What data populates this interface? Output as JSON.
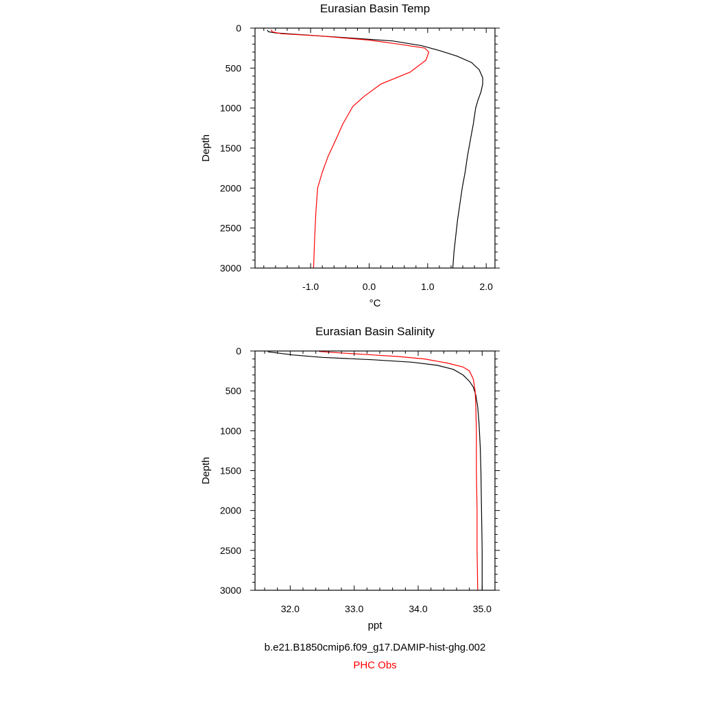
{
  "chart_data": [
    {
      "type": "line",
      "title": "Eurasian Basin Temp",
      "xlabel": "°C",
      "ylabel": "Depth",
      "xlim": [
        -1.95,
        2.15
      ],
      "ylim": [
        3000,
        0
      ],
      "y_reversed": true,
      "xticks": [
        -1.0,
        0.0,
        1.0,
        2.0
      ],
      "xtick_labels": [
        "-1.0",
        "0.0",
        "1.0",
        "2.0"
      ],
      "yticks": [
        0,
        500,
        1000,
        1500,
        2000,
        2500,
        3000
      ],
      "ytick_labels": [
        "0",
        "500",
        "1000",
        "1500",
        "2000",
        "2500",
        "3000"
      ],
      "series": [
        {
          "name": "b.e21.B1850cmip6.f09_g17.DAMIP-hist-ghg.002",
          "color": "#000000",
          "points": [
            [
              -1.74,
              25
            ],
            [
              -1.72,
              45
            ],
            [
              -1.6,
              60
            ],
            [
              -1.2,
              80
            ],
            [
              -0.4,
              120
            ],
            [
              0.4,
              160
            ],
            [
              0.9,
              220
            ],
            [
              1.2,
              280
            ],
            [
              1.5,
              350
            ],
            [
              1.75,
              430
            ],
            [
              1.88,
              520
            ],
            [
              1.94,
              620
            ],
            [
              1.94,
              700
            ],
            [
              1.91,
              800
            ],
            [
              1.86,
              900
            ],
            [
              1.82,
              1000
            ],
            [
              1.78,
              1200
            ],
            [
              1.73,
              1400
            ],
            [
              1.68,
              1600
            ],
            [
              1.64,
              1800
            ],
            [
              1.59,
              2000
            ],
            [
              1.55,
              2200
            ],
            [
              1.51,
              2400
            ],
            [
              1.48,
              2600
            ],
            [
              1.45,
              2800
            ],
            [
              1.43,
              3000
            ]
          ]
        },
        {
          "name": "PHC Obs",
          "color": "#ff0000",
          "points": [
            [
              -1.67,
              20
            ],
            [
              -1.66,
              45
            ],
            [
              -1.5,
              70
            ],
            [
              -0.8,
              100
            ],
            [
              0,
              150
            ],
            [
              0.5,
              200
            ],
            [
              0.95,
              250
            ],
            [
              1.02,
              300
            ],
            [
              0.97,
              400
            ],
            [
              0.7,
              550
            ],
            [
              0.2,
              700
            ],
            [
              -0.08,
              850
            ],
            [
              -0.28,
              980
            ],
            [
              -0.45,
              1200
            ],
            [
              -0.56,
              1380
            ],
            [
              -0.7,
              1600
            ],
            [
              -0.8,
              1800
            ],
            [
              -0.88,
              2000
            ],
            [
              -0.91,
              2300
            ],
            [
              -0.93,
              2600
            ],
            [
              -0.95,
              3000
            ]
          ]
        }
      ]
    },
    {
      "type": "line",
      "title": "Eurasian Basin Salinity",
      "xlabel": "ppt",
      "ylabel": "Depth",
      "xlim": [
        31.45,
        35.2
      ],
      "ylim": [
        3000,
        0
      ],
      "y_reversed": true,
      "xticks": [
        32.0,
        33.0,
        34.0,
        35.0
      ],
      "xtick_labels": [
        "32.0",
        "33.0",
        "34.0",
        "35.0"
      ],
      "yticks": [
        0,
        500,
        1000,
        1500,
        2000,
        2500,
        3000
      ],
      "ytick_labels": [
        "0",
        "500",
        "1000",
        "1500",
        "2000",
        "2500",
        "3000"
      ],
      "series": [
        {
          "name": "b.e21.B1850cmip6.f09_g17.DAMIP-hist-ghg.002",
          "color": "#000000",
          "points": [
            [
              31.65,
              10
            ],
            [
              31.75,
              20
            ],
            [
              32.05,
              50
            ],
            [
              32.5,
              80
            ],
            [
              33.3,
              110
            ],
            [
              33.9,
              140
            ],
            [
              34.3,
              180
            ],
            [
              34.55,
              230
            ],
            [
              34.7,
              300
            ],
            [
              34.8,
              380
            ],
            [
              34.86,
              450
            ],
            [
              34.9,
              550
            ],
            [
              34.93,
              700
            ],
            [
              34.95,
              900
            ],
            [
              34.97,
              1200
            ],
            [
              34.98,
              1500
            ],
            [
              34.99,
              2000
            ],
            [
              35.0,
              2500
            ],
            [
              35.0,
              3000
            ]
          ]
        },
        {
          "name": "PHC Obs",
          "color": "#ff0000",
          "points": [
            [
              32.45,
              5
            ],
            [
              32.7,
              20
            ],
            [
              33.2,
              45
            ],
            [
              33.7,
              70
            ],
            [
              34.1,
              100
            ],
            [
              34.45,
              150
            ],
            [
              34.7,
              200
            ],
            [
              34.8,
              250
            ],
            [
              34.86,
              350
            ],
            [
              34.89,
              500
            ],
            [
              34.9,
              700
            ],
            [
              34.91,
              1000
            ],
            [
              34.91,
              1500
            ],
            [
              34.92,
              2000
            ],
            [
              34.92,
              2500
            ],
            [
              34.93,
              3000
            ]
          ]
        }
      ]
    }
  ],
  "legend": {
    "model_run": "b.e21.B1850cmip6.f09_g17.DAMIP-hist-ghg.002",
    "obs": "PHC Obs"
  },
  "colors": {
    "model": "#000000",
    "obs": "#ff0000"
  }
}
